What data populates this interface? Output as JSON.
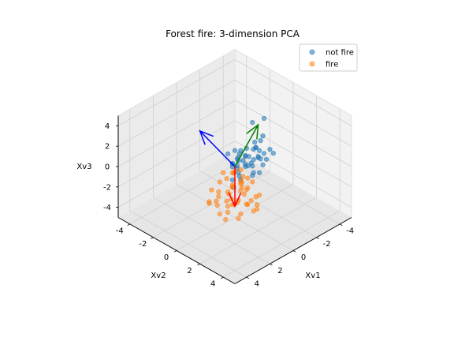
{
  "chart_data": {
    "type": "scatter",
    "title": "Forest fire: 3-dimension PCA",
    "xlabel": "Xv1",
    "ylabel": "Xv2",
    "zlabel": "Xv3",
    "xlim": [
      -5,
      5
    ],
    "ylim": [
      -5,
      5
    ],
    "zlim": [
      -5,
      5
    ],
    "xticks": [
      -4,
      -2,
      0,
      2,
      4
    ],
    "yticks": [
      -4,
      -2,
      0,
      2,
      4
    ],
    "zticks": [
      -4,
      -2,
      0,
      2,
      4
    ],
    "grid": true,
    "legend_position": "top-right",
    "series": [
      {
        "name": "not fire",
        "color": "#1f77b4",
        "points": [
          [
            -3.5,
            -1.0,
            1.8
          ],
          [
            -3.0,
            -1.5,
            1.4
          ],
          [
            -3.2,
            -0.8,
            0.4
          ],
          [
            -2.6,
            -0.4,
            0.6
          ],
          [
            -2.4,
            -0.6,
            -0.1
          ],
          [
            -2.1,
            0.0,
            0.2
          ],
          [
            -1.8,
            -0.2,
            0.4
          ],
          [
            -1.9,
            0.1,
            -0.3
          ],
          [
            -1.5,
            -0.5,
            0.5
          ],
          [
            -1.4,
            0.2,
            -0.1
          ],
          [
            -1.2,
            -0.3,
            0.1
          ],
          [
            -1.1,
            0.4,
            -0.4
          ],
          [
            -1.0,
            -0.1,
            0.3
          ],
          [
            -0.9,
            0.3,
            0.6
          ],
          [
            -0.8,
            0.1,
            -0.2
          ],
          [
            -0.7,
            -0.4,
            0.2
          ],
          [
            -0.6,
            0.5,
            0.0
          ],
          [
            -0.5,
            0.2,
            0.4
          ],
          [
            -0.4,
            -0.2,
            -0.3
          ],
          [
            -0.3,
            0.6,
            0.2
          ],
          [
            -0.2,
            0.1,
            0.5
          ],
          [
            -0.1,
            -0.3,
            0.0
          ],
          [
            0.0,
            0.3,
            -0.4
          ],
          [
            0.1,
            -0.1,
            0.3
          ],
          [
            -1.6,
            0.6,
            0.1
          ],
          [
            -1.3,
            -0.8,
            0.2
          ],
          [
            -2.2,
            0.5,
            -0.4
          ],
          [
            -0.9,
            -0.7,
            -0.3
          ],
          [
            -0.5,
            0.9,
            0.6
          ],
          [
            -1.7,
            0.8,
            0.7
          ],
          [
            -0.8,
            0.8,
            -0.6
          ],
          [
            0.2,
            0.4,
            0.2
          ],
          [
            -2.8,
            0.2,
            0.0
          ],
          [
            -1.0,
            1.0,
            1.0
          ],
          [
            0.3,
            0.8,
            -0.6
          ],
          [
            -0.3,
            1.2,
            -0.3
          ],
          [
            0.5,
            0.3,
            0.5
          ],
          [
            -1.2,
            0.9,
            -0.8
          ],
          [
            0.6,
            1.0,
            0.1
          ],
          [
            -0.6,
            -0.6,
            0.8
          ],
          [
            -2.0,
            -0.3,
            0.9
          ],
          [
            -1.5,
            0.3,
            1.1
          ],
          [
            0.8,
            0.6,
            -0.4
          ],
          [
            -0.2,
            -0.8,
            0.6
          ],
          [
            1.0,
            0.9,
            -0.8
          ],
          [
            -1.1,
            1.3,
            0.3
          ],
          [
            -2.5,
            0.8,
            0.2
          ],
          [
            -0.4,
            0.0,
            1.0
          ]
        ]
      },
      {
        "name": "fire",
        "color": "#ff7f0e",
        "points": [
          [
            3.6,
            3.0,
            0.4
          ],
          [
            3.0,
            3.2,
            0.5
          ],
          [
            3.2,
            2.6,
            -0.7
          ],
          [
            2.6,
            3.4,
            1.2
          ],
          [
            2.8,
            2.1,
            -0.2
          ],
          [
            2.2,
            2.7,
            0.8
          ],
          [
            2.4,
            1.9,
            0.1
          ],
          [
            2.0,
            2.3,
            -0.5
          ],
          [
            1.8,
            1.6,
            0.4
          ],
          [
            1.6,
            2.1,
            1.0
          ],
          [
            1.4,
            1.2,
            -0.3
          ],
          [
            1.2,
            1.7,
            0.2
          ],
          [
            1.0,
            0.9,
            0.6
          ],
          [
            0.8,
            1.4,
            -0.6
          ],
          [
            0.6,
            0.6,
            0.3
          ],
          [
            0.4,
            1.1,
            0.0
          ],
          [
            2.9,
            1.4,
            -1.0
          ],
          [
            3.4,
            1.8,
            0.0
          ],
          [
            2.3,
            0.9,
            -0.4
          ],
          [
            1.7,
            2.8,
            -0.8
          ],
          [
            3.1,
            3.6,
            -0.3
          ],
          [
            2.1,
            3.5,
            0.3
          ],
          [
            1.1,
            2.6,
            0.9
          ],
          [
            3.8,
            2.4,
            1.1
          ],
          [
            3.5,
            1.3,
            -0.5
          ],
          [
            1.5,
            0.5,
            0.7
          ],
          [
            2.7,
            3.0,
            -1.4
          ],
          [
            0.9,
            2.0,
            -0.2
          ],
          [
            2.5,
            1.2,
            0.9
          ],
          [
            1.9,
            2.5,
            1.3
          ],
          [
            3.3,
            2.0,
            -1.2
          ],
          [
            0.7,
            1.8,
            0.5
          ],
          [
            1.3,
            3.1,
            -0.1
          ],
          [
            2.0,
            3.9,
            0.1
          ],
          [
            3.7,
            2.9,
            -0.9
          ],
          [
            2.6,
            2.3,
            0.0
          ],
          [
            1.6,
            1.0,
            -0.8
          ],
          [
            0.5,
            0.3,
            -0.1
          ],
          [
            0.3,
            0.8,
            0.4
          ],
          [
            1.1,
            0.4,
            -0.2
          ],
          [
            2.8,
            3.8,
            0.6
          ],
          [
            3.9,
            1.7,
            0.2
          ],
          [
            1.8,
            3.7,
            -0.6
          ],
          [
            2.4,
            4.0,
            -0.2
          ],
          [
            3.5,
            3.5,
            0.9
          ],
          [
            2.2,
            2.0,
            -1.0
          ],
          [
            1.4,
            2.4,
            0.2
          ],
          [
            3.0,
            1.0,
            0.3
          ],
          [
            0.8,
            2.9,
            -0.4
          ],
          [
            2.9,
            2.7,
            1.6
          ]
        ]
      }
    ],
    "loading_vectors": [
      {
        "color": "#ff0000",
        "start": [
          0,
          0,
          0
        ],
        "end": [
          3.0,
          3.0,
          0.0
        ]
      },
      {
        "color": "#0000ff",
        "start": [
          0,
          0,
          0
        ],
        "end": [
          1.5,
          -1.5,
          3.5
        ]
      },
      {
        "color": "#008000",
        "start": [
          0,
          0,
          0
        ],
        "end": [
          -3.0,
          -1.0,
          1.5
        ]
      }
    ]
  }
}
